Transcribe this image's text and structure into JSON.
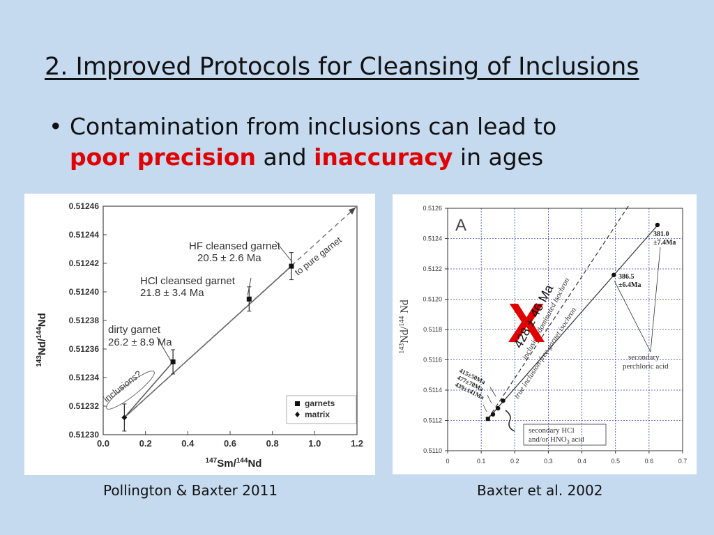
{
  "slide": {
    "title": "2. Improved Protocols for Cleansing of Inclusions",
    "bullet_prefix": "Contamination from inclusions can lead to",
    "highlight_1": "poor precision",
    "and_word": "and",
    "highlight_2": "inaccuracy",
    "suffix": "in ages",
    "bullet_symbol": "•",
    "highlight_color": "#e00000",
    "left_caption": "Pollington & Baxter 2011",
    "right_caption": "Baxter et al. 2002"
  },
  "chart_data": [
    {
      "type": "scatter",
      "xlabel_iso": "147",
      "xlabel_a": "Sm/",
      "xlabel_iso2": "144",
      "xlabel_b": "Nd",
      "ylabel_iso": "143",
      "ylabel_a": "Nd/",
      "ylabel_iso2": "144",
      "ylabel_b": "Nd",
      "xlim": [
        0.0,
        1.2
      ],
      "ylim": [
        0.5123,
        0.51246
      ],
      "xticks": [
        "0.0",
        "0.2",
        "0.4",
        "0.6",
        "0.8",
        "1.0",
        "1.2"
      ],
      "yticks": [
        "0.51230",
        "0.51232",
        "0.51234",
        "0.51236",
        "0.51238",
        "0.51240",
        "0.51242",
        "0.51244",
        "0.51246"
      ],
      "series": [
        {
          "name": "garnets",
          "marker": "square",
          "points": [
            {
              "x": 0.33,
              "y": 0.512351,
              "err": 8.5e-06
            },
            {
              "x": 0.69,
              "y": 0.512395,
              "err": 8.5e-06
            },
            {
              "x": 0.89,
              "y": 0.512418,
              "err": 9.5e-06
            }
          ]
        },
        {
          "name": "matrix",
          "marker": "diamond",
          "points": [
            {
              "x": 0.1,
              "y": 0.512312,
              "err": 9.5e-06
            }
          ]
        }
      ],
      "lines": [
        {
          "style": "solid",
          "from": [
            0.1,
            0.512312
          ],
          "to": [
            0.89,
            0.512418
          ]
        },
        {
          "style": "solid",
          "from": [
            0.1,
            0.512312
          ],
          "to": [
            0.33,
            0.512351
          ]
        },
        {
          "style": "dashed",
          "from": [
            0.1,
            0.512312
          ],
          "to": [
            1.2,
            0.51246
          ]
        }
      ],
      "annotations": {
        "hf_1": "HF cleansed garnet",
        "hf_2": "20.5 ± 2.6 Ma",
        "hcl_1": "HCl cleansed garnet",
        "hcl_2": "21.8 ± 3.4 Ma",
        "dirty_1": "dirty garnet",
        "dirty_2": "26.2 ± 8.9 Ma",
        "inclusions": "inclusions?",
        "pure": "to pure garnet"
      },
      "legend": {
        "garnets": "garnets",
        "matrix": "matrix",
        "position": "bottom-right"
      }
    },
    {
      "type": "scatter",
      "panel_letter": "A",
      "ylabel_iso": "143",
      "ylabel_a": "Nd/",
      "ylabel_iso2": "144",
      "ylabel_b": " Nd",
      "xlim": [
        0,
        0.7
      ],
      "ylim": [
        0.511,
        0.5126
      ],
      "xticks": [
        "0",
        "0.1",
        "0.2",
        "0.3",
        "0.4",
        "0.5",
        "0.6",
        "0.7"
      ],
      "yticks": [
        "0.5110",
        "0.5112",
        "0.5114",
        "0.5116",
        "0.5118",
        "0.5120",
        "0.5122",
        "0.5124",
        "0.5126"
      ],
      "grid": true,
      "points": [
        {
          "x": 0.12,
          "y": 0.51121,
          "marker": "square"
        },
        {
          "x": 0.135,
          "y": 0.51124,
          "marker": "circle"
        },
        {
          "x": 0.15,
          "y": 0.51128,
          "marker": "circle"
        },
        {
          "x": 0.165,
          "y": 0.51133,
          "marker": "circle"
        },
        {
          "x": 0.495,
          "y": 0.51216,
          "marker": "circle"
        },
        {
          "x": 0.625,
          "y": 0.51249,
          "marker": "circle"
        }
      ],
      "lines": [
        {
          "style": "solid",
          "from": [
            0.12,
            0.51121
          ],
          "to": [
            0.63,
            0.5125
          ]
        },
        {
          "style": "dashed",
          "from": [
            0.12,
            0.51121
          ],
          "to": [
            0.54,
            0.51262
          ]
        }
      ],
      "annotations": {
        "ages_1": "415±50Ma",
        "ages_2": "477±70Ma",
        "ages_3": "439±141Ma",
        "age_386_1": "386.5",
        "age_386_2": "±6.4Ma",
        "age_381_1": "381.0",
        "age_381_2": "±7.4Ma",
        "sec_perc_1": "secondary",
        "sec_perc_2": "perchloric acid",
        "sec_hcl_1": "secondary HCl",
        "sec_hcl_2": "and/or HNO",
        "sec_hcl_sub": "3",
        "sec_hcl_3": " acid",
        "incl_iso": "inclusion-dominated isochron",
        "true_iso": "true inclusion-free garnet isochron",
        "overlay_age": "428 ± 46 Ma",
        "overlay_cross": "X",
        "overlay_color": "#e00000"
      }
    }
  ]
}
